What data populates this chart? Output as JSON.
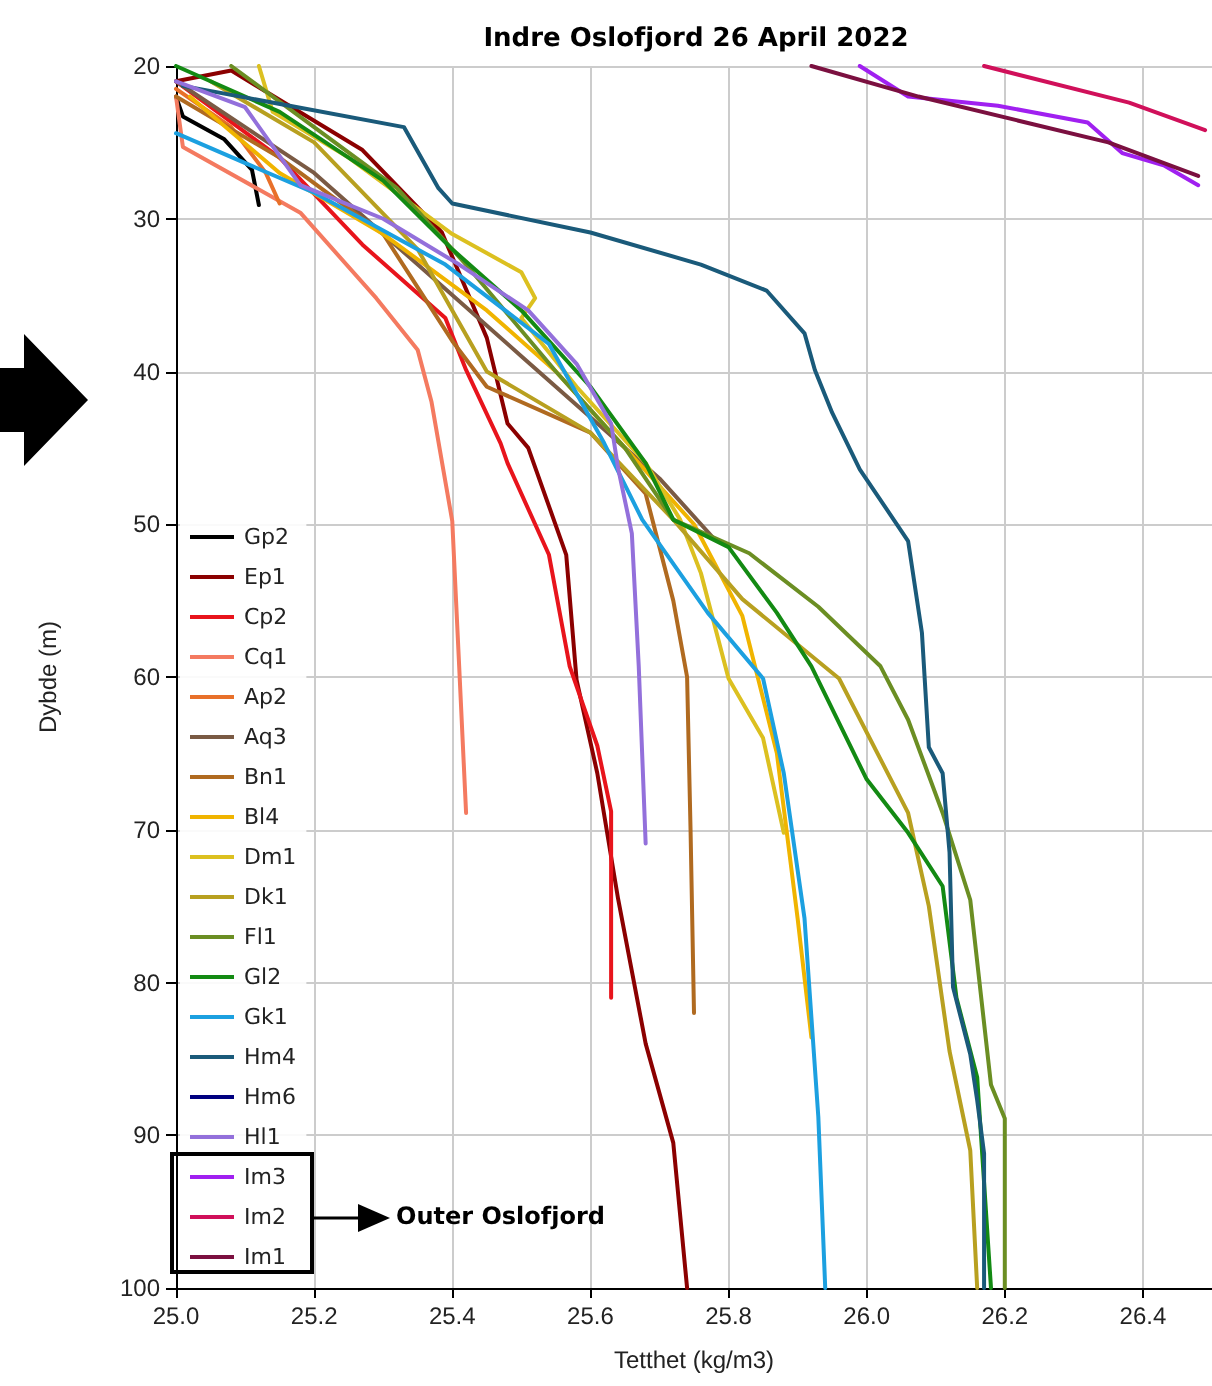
{
  "chart_data": {
    "type": "line",
    "title": "Indre Oslofjord 26 April 2022",
    "xlabel": "Tetthet (kg/m3)",
    "ylabel": "Dybde (m)",
    "xlim": [
      25.0,
      26.5
    ],
    "xticks": [
      {
        "value": 25.0,
        "label": "25.0"
      },
      {
        "value": 25.2,
        "label": "25.2"
      },
      {
        "value": 25.4,
        "label": "25.4"
      },
      {
        "value": 25.6,
        "label": "25.6"
      },
      {
        "value": 25.8,
        "label": "25.8"
      },
      {
        "value": 26.0,
        "label": "26.0"
      },
      {
        "value": 26.2,
        "label": "26.2"
      },
      {
        "value": 26.4,
        "label": "26.4"
      }
    ],
    "ylim": [
      100,
      20
    ],
    "yticks": [
      20,
      30,
      40,
      50,
      60,
      70,
      80,
      90,
      100
    ],
    "grid": true,
    "legend": "bottom left",
    "marker": "none",
    "line_style": "solid",
    "annotations": [
      "Outer Oslofjord"
    ],
    "series": [
      {
        "name": "Gp2",
        "color": "#000000",
        "x": [
          25.0,
          25.01,
          25.07,
          25.11,
          25.12
        ],
        "values": [
          22,
          23.3,
          24.8,
          26.8,
          29.1
        ]
      },
      {
        "name": "Ep1",
        "color": "#8b0000",
        "x": [
          25.0,
          25.08,
          25.27,
          25.385,
          25.45,
          25.48,
          25.51,
          25.565,
          25.58,
          25.61,
          25.64,
          25.68,
          25.72,
          25.74
        ],
        "values": [
          21,
          20.3,
          25.5,
          30.9,
          37.8,
          43.4,
          45,
          52,
          60.2,
          66.3,
          74.5,
          84,
          90.5,
          100
        ]
      },
      {
        "name": "Cp2",
        "color": "#e8141c",
        "x": [
          25.0,
          25.15,
          25.27,
          25.39,
          25.42,
          25.47,
          25.48,
          25.54,
          25.57,
          25.61,
          25.63,
          25.63
        ],
        "values": [
          21,
          26,
          31.7,
          36.5,
          39.9,
          44.7,
          46,
          52,
          59.3,
          64.5,
          68.8,
          81
        ]
      },
      {
        "name": "Cq1",
        "color": "#f47a60",
        "x": [
          25.0,
          25.01,
          25.18,
          25.29,
          25.35,
          25.37,
          25.4,
          25.41,
          25.42
        ],
        "values": [
          22,
          25.3,
          29.6,
          35.2,
          38.6,
          42,
          49.8,
          59.3,
          68.9
        ]
      },
      {
        "name": "Ap2",
        "color": "#e8702a",
        "x": [
          25.0,
          25.08,
          25.13,
          25.15
        ],
        "values": [
          21.5,
          24,
          27,
          29
        ]
      },
      {
        "name": "Aq3",
        "color": "#7a5a44",
        "x": [
          25.0,
          25.2,
          25.35,
          25.5,
          25.6,
          25.7,
          25.78
        ],
        "values": [
          21,
          27,
          33,
          39,
          43,
          47,
          51
        ]
      },
      {
        "name": "Bn1",
        "color": "#b06a20",
        "x": [
          25.0,
          25.15,
          25.3,
          25.4,
          25.45,
          25.6,
          25.68,
          25.72,
          25.74,
          25.745,
          25.75
        ],
        "values": [
          22,
          26,
          31,
          38,
          41,
          44,
          48,
          55,
          60,
          70,
          82
        ]
      },
      {
        "name": "Bl4",
        "color": "#f0b400",
        "x": [
          25.02,
          25.15,
          25.3,
          25.45,
          25.55,
          25.65,
          25.75,
          25.82,
          25.87,
          25.9,
          25.92
        ],
        "values": [
          22,
          27,
          31,
          36,
          40,
          45,
          50,
          56,
          65,
          75.8,
          83.6
        ]
      },
      {
        "name": "Dm1",
        "color": "#dcc020",
        "x": [
          25.12,
          25.14,
          25.25,
          25.4,
          25.5,
          25.52,
          25.5,
          25.58,
          25.68,
          25.73,
          25.76,
          25.8,
          25.85,
          25.88
        ],
        "values": [
          20,
          23,
          26,
          31,
          33.5,
          35.2,
          36.5,
          41,
          46,
          49.7,
          53.2,
          60.1,
          64,
          70.2
        ]
      },
      {
        "name": "Dk1",
        "color": "#b8a020",
        "x": [
          25.05,
          25.2,
          25.35,
          25.4,
          25.45,
          25.6,
          25.72,
          25.82,
          25.96,
          26.06,
          26.09,
          26.12,
          26.15,
          26.16
        ],
        "values": [
          21,
          25,
          32,
          36,
          40,
          44,
          49.7,
          54.9,
          60.1,
          68.9,
          75,
          84.5,
          91,
          100
        ]
      },
      {
        "name": "Fl1",
        "color": "#6b8e23",
        "x": [
          25.08,
          25.2,
          25.32,
          25.42,
          25.55,
          25.65,
          25.72,
          25.83,
          25.93,
          26.02,
          26.06,
          26.11,
          26.15,
          26.18,
          26.2,
          26.2
        ],
        "values": [
          20,
          24,
          28,
          33,
          40,
          45,
          49.7,
          51.9,
          55.4,
          59.3,
          62.8,
          68.9,
          74.6,
          86.7,
          88.9,
          100
        ]
      },
      {
        "name": "Gl2",
        "color": "#138a13",
        "x": [
          25.0,
          25.15,
          25.3,
          25.4,
          25.5,
          25.6,
          25.68,
          25.72,
          25.8,
          25.87,
          25.92,
          26.0,
          26.06,
          26.11,
          26.13,
          26.16,
          26.17,
          26.18
        ],
        "values": [
          20,
          23,
          27.5,
          32,
          36,
          41,
          46,
          49.7,
          51.5,
          55.8,
          59.3,
          66.7,
          70.2,
          73.7,
          81,
          86.2,
          93.1,
          100
        ]
      },
      {
        "name": "Gk1",
        "color": "#1ca0e0",
        "x": [
          25.0,
          25.2,
          25.39,
          25.54,
          25.62,
          25.675,
          25.77,
          25.85,
          25.88,
          25.91,
          25.93,
          25.94
        ],
        "values": [
          24.4,
          28.3,
          33,
          38.2,
          44.7,
          49.7,
          55.8,
          60.1,
          66.3,
          75.8,
          88.8,
          100
        ]
      },
      {
        "name": "Hm4",
        "color": "#1a5a7a",
        "x": [
          25.01,
          25.33,
          25.38,
          25.4,
          25.6,
          25.76,
          25.855,
          25.91,
          25.925,
          25.95,
          25.99,
          26.06,
          26.08,
          26.09,
          26.11,
          26.12,
          26.125,
          26.15,
          26.16,
          26.17,
          26.17
        ],
        "values": [
          21.3,
          24,
          28,
          29,
          30.9,
          33,
          34.7,
          37.5,
          39.9,
          42.7,
          46.4,
          51.1,
          57.1,
          64.6,
          66.3,
          71.5,
          80.3,
          84.7,
          87.7,
          91.2,
          100
        ]
      },
      {
        "name": "Hm6",
        "color": "#000080"
      },
      {
        "name": "Hl1",
        "color": "#9370db",
        "x": [
          25.0,
          25.1,
          25.18,
          25.3,
          25.41,
          25.51,
          25.58,
          25.63,
          25.64,
          25.66,
          25.67,
          25.68
        ],
        "values": [
          21,
          22.7,
          27.8,
          30,
          33,
          36,
          39.5,
          43.4,
          46.3,
          50.6,
          59.3,
          70.9
        ]
      },
      {
        "name": "Im3",
        "color": "#a020f0",
        "x": [
          25.99,
          26.06,
          26.19,
          26.32,
          26.37,
          26.43,
          26.48
        ],
        "values": [
          20,
          22,
          22.6,
          23.7,
          25.7,
          26.5,
          27.8
        ]
      },
      {
        "name": "Im2",
        "color": "#d0105a",
        "x": [
          26.17,
          26.38,
          26.49
        ],
        "values": [
          20,
          22.4,
          24.2
        ]
      },
      {
        "name": "Im1",
        "color": "#7b1040",
        "x": [
          25.92,
          26.075,
          26.35,
          26.48
        ],
        "values": [
          20,
          22,
          25,
          27.2
        ]
      }
    ]
  }
}
